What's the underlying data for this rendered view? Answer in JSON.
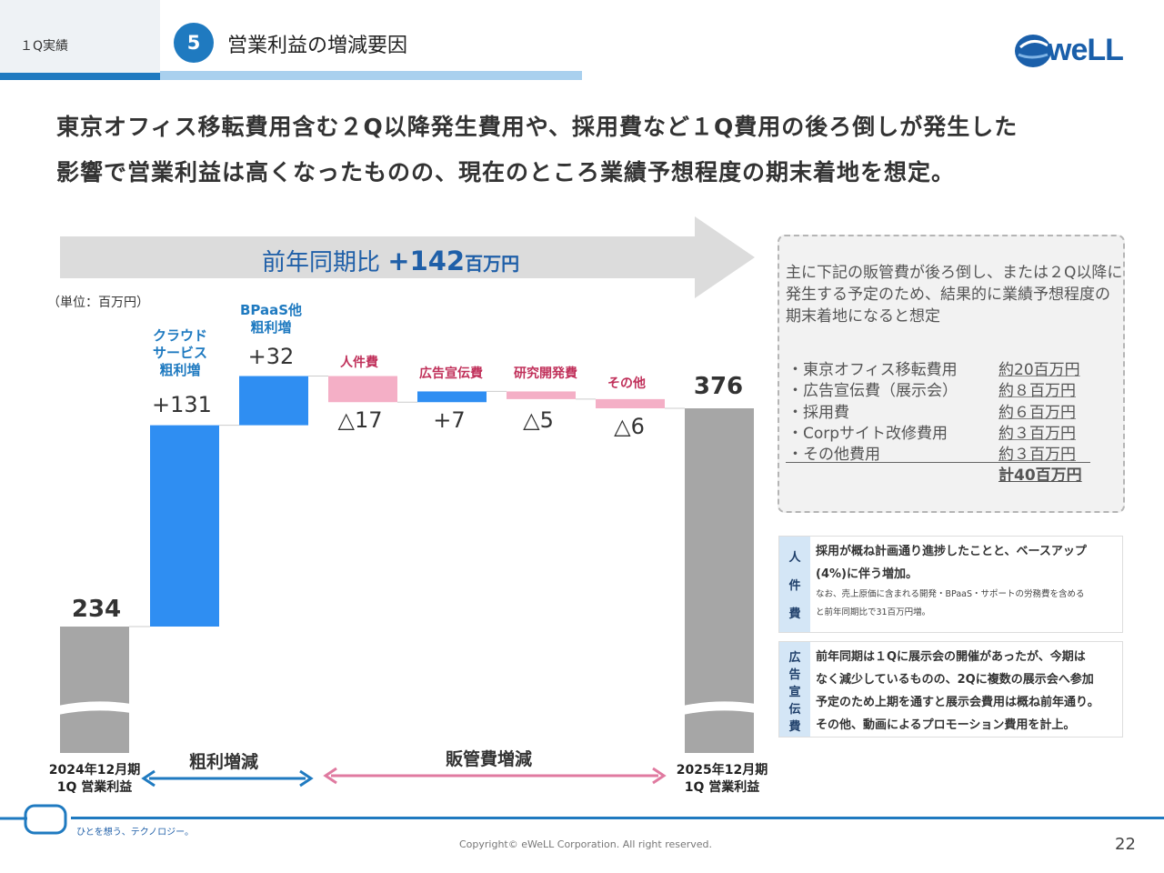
{
  "header": {
    "section": "１Q実績",
    "number": "5",
    "title": "営業利益の増減要因",
    "logo_text": "weLL"
  },
  "headline": {
    "line1": "東京オフィス移転費用含む２Q以降発生費用や、採用費など１Q費用の後ろ倒しが発生した",
    "line2": "影響で営業利益は高くなったものの、現在のところ業績予想程度の期末着地を想定。"
  },
  "arrow": {
    "prefix": "前年同期比 ",
    "value": "+142",
    "unit": "百万円"
  },
  "unit_note": "（単位：百万円）",
  "chart_data": {
    "type": "bar",
    "subtype": "waterfall",
    "categories": [
      "2024年12月期 1Q 営業利益",
      "クラウドサービス粗利増",
      "BPaaS他粗利増",
      "人件費",
      "広告宣伝費",
      "研究開発費",
      "その他",
      "2025年12月期 1Q 営業利益"
    ],
    "values": [
      234,
      131,
      32,
      -17,
      7,
      -5,
      -6,
      376
    ],
    "start": 234,
    "end": 376,
    "value_labels": [
      "234",
      "+131",
      "+32",
      "△17",
      "+7",
      "△5",
      "△6",
      "376"
    ],
    "category_labels": {
      "cloud": "クラウド\nサービス\n粗利増",
      "bpaas": "BPaaS他\n粗利増",
      "personnel": "人件費",
      "ads": "広告宣伝費",
      "rnd": "研究開発費",
      "other": "その他"
    },
    "x_start_label_1": "2024年12月期",
    "x_start_label_2": "1Q 営業利益",
    "x_end_label_1": "2025年12月期",
    "x_end_label_2": "1Q 営業利益",
    "range_gross": "粗利増減",
    "range_sga": "販管費増減",
    "colors": {
      "total": "#a6a6a6",
      "increase_gross": "#2f8ef2",
      "increase_sga": "#2f8ef2",
      "decrease": "#f4afc6",
      "gross_arrow": "#1f7ac0",
      "sga_arrow": "#e07aa0"
    }
  },
  "note": {
    "intro": "主に下記の販管費が後ろ倒し、または２Q以降に発生する予定のため、結果的に業績予想程度の期末着地になると想定",
    "items": [
      {
        "label": "・東京オフィス移転費用",
        "amount": "約20百万円"
      },
      {
        "label": "・広告宣伝費（展示会）",
        "amount": "約８百万円"
      },
      {
        "label": "・採用費",
        "amount": "約６百万円"
      },
      {
        "label": "・Corpサイト改修費用",
        "amount": "約３百万円"
      },
      {
        "label": "・その他費用",
        "amount": "約３百万円"
      }
    ],
    "total": "計40百万円"
  },
  "details": {
    "personnel_tag": [
      "人",
      "件",
      "費"
    ],
    "personnel_text_1": "採用が概ね計画通り進捗したことと、ベースアップ",
    "personnel_text_2": "(4%)に伴う増加。",
    "personnel_small_1": "なお、売上原価に含まれる開発・BPaaS・サポートの労務費を含める",
    "personnel_small_2": "と前年同期比で31百万円増。",
    "ads_tag": [
      "広",
      "告",
      "宣",
      "伝",
      "費"
    ],
    "ads_text_1": "前年同期は１Qに展示会の開催があったが、今期は",
    "ads_text_2": "なく減少しているものの、2Qに複数の展示会へ参加",
    "ads_text_3": "予定のため上期を通すと展示会費用は概ね前年通り。",
    "ads_text_4": "その他、動画によるプロモーション費用を計上。"
  },
  "footer": {
    "tagline": "ひとを想う、テクノロジー。",
    "copyright": "Copyright© eWeLL Corporation. All right reserved.",
    "page": "22"
  }
}
